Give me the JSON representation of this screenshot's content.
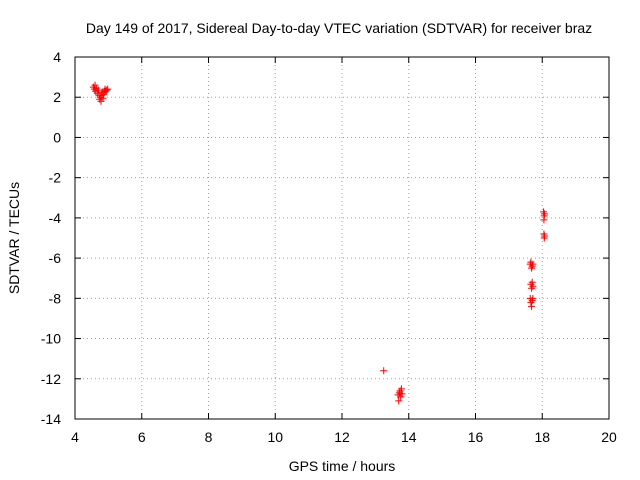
{
  "chart_data": {
    "type": "scatter",
    "title": "Day 149 of 2017, Sidereal Day-to-day VTEC variation (SDTVAR) for receiver braz",
    "xlabel": "GPS time / hours",
    "ylabel": "SDTVAR / TECUs",
    "xlim": [
      4,
      20
    ],
    "ylim": [
      -14,
      4
    ],
    "xticks": [
      4,
      6,
      8,
      10,
      12,
      14,
      16,
      18,
      20
    ],
    "yticks": [
      4,
      2,
      0,
      -2,
      -4,
      -6,
      -8,
      -10,
      -12,
      -14
    ],
    "grid": true,
    "marker": "+",
    "series": [
      {
        "name": "SDTVAR",
        "color": "#ff0000",
        "points": [
          [
            4.55,
            2.5
          ],
          [
            4.58,
            2.4
          ],
          [
            4.6,
            2.6
          ],
          [
            4.62,
            2.3
          ],
          [
            4.65,
            2.45
          ],
          [
            4.67,
            2.2
          ],
          [
            4.7,
            2.35
          ],
          [
            4.72,
            2.1
          ],
          [
            4.74,
            1.9
          ],
          [
            4.76,
            2.0
          ],
          [
            4.78,
            1.8
          ],
          [
            4.8,
            2.1
          ],
          [
            4.82,
            2.25
          ],
          [
            4.84,
            1.95
          ],
          [
            4.86,
            2.15
          ],
          [
            4.88,
            2.3
          ],
          [
            4.9,
            2.4
          ],
          [
            4.92,
            2.3
          ],
          [
            4.95,
            2.35
          ],
          [
            4.98,
            2.4
          ],
          [
            13.25,
            -11.6
          ],
          [
            13.68,
            -12.8
          ],
          [
            13.7,
            -13.1
          ],
          [
            13.72,
            -12.7
          ],
          [
            13.74,
            -12.6
          ],
          [
            13.76,
            -12.9
          ],
          [
            13.78,
            -12.5
          ],
          [
            13.8,
            -12.75
          ],
          [
            17.64,
            -6.3
          ],
          [
            17.66,
            -6.2
          ],
          [
            17.68,
            -6.5
          ],
          [
            17.7,
            -6.4
          ],
          [
            17.72,
            -6.3
          ],
          [
            17.66,
            -7.3
          ],
          [
            17.68,
            -7.5
          ],
          [
            17.7,
            -7.2
          ],
          [
            17.72,
            -7.4
          ],
          [
            17.64,
            -8.0
          ],
          [
            17.66,
            -8.2
          ],
          [
            17.68,
            -8.4
          ],
          [
            17.7,
            -8.1
          ],
          [
            17.72,
            -8.0
          ],
          [
            18.04,
            -3.7
          ],
          [
            18.06,
            -3.9
          ],
          [
            18.05,
            -4.1
          ],
          [
            18.07,
            -3.8
          ],
          [
            18.05,
            -4.8
          ],
          [
            18.06,
            -5.0
          ],
          [
            18.07,
            -4.9
          ]
        ]
      }
    ]
  }
}
